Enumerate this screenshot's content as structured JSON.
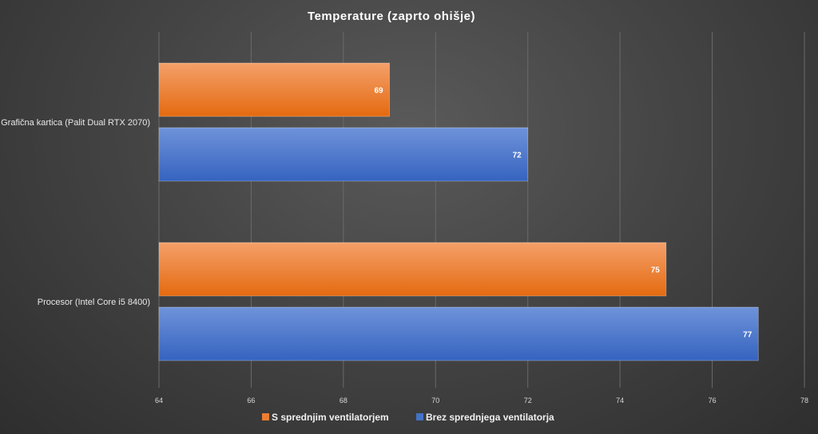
{
  "chart_data": {
    "type": "bar",
    "orientation": "horizontal",
    "title": "Temperature  (zaprto  ohišje)",
    "categories": [
      "Grafična kartica (Palit Dual RTX 2070)",
      "Procesor (Intel Core i5 8400)"
    ],
    "series": [
      {
        "name": "S sprednjim ventilatorjem",
        "values": [
          69,
          75
        ],
        "color": "#ed7d31"
      },
      {
        "name": "Brez sprednjega ventilatorja",
        "values": [
          72,
          77
        ],
        "color": "#4472c4"
      }
    ],
    "xlim": [
      64,
      78
    ],
    "xticks": [
      64,
      66,
      68,
      70,
      72,
      74,
      76,
      78
    ],
    "grid": true,
    "legend_position": "bottom"
  }
}
